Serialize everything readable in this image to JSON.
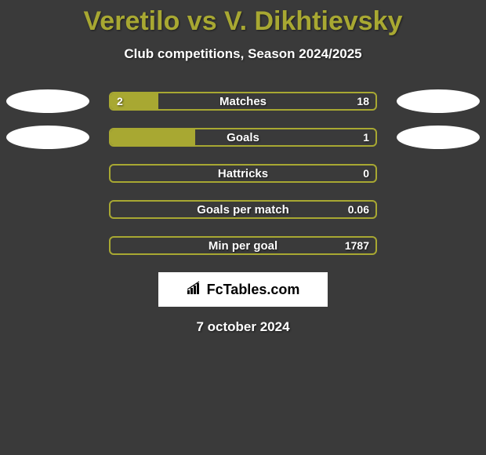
{
  "title": "Veretilo vs V. Dikhtievsky",
  "subtitle": "Club competitions, Season 2024/2025",
  "colors": {
    "background": "#3a3a3a",
    "accent": "#a8a832",
    "text": "#ffffff",
    "oval": "#ffffff"
  },
  "stats": [
    {
      "label": "Matches",
      "left_value": "2",
      "right_value": "18",
      "left_fill_pct": 18,
      "right_fill_pct": 0,
      "show_left_oval": true,
      "show_right_oval": true
    },
    {
      "label": "Goals",
      "left_value": "",
      "right_value": "1",
      "left_fill_pct": 32,
      "right_fill_pct": 0,
      "show_left_oval": true,
      "show_right_oval": true
    },
    {
      "label": "Hattricks",
      "left_value": "",
      "right_value": "0",
      "left_fill_pct": 0,
      "right_fill_pct": 0,
      "show_left_oval": false,
      "show_right_oval": false
    },
    {
      "label": "Goals per match",
      "left_value": "",
      "right_value": "0.06",
      "left_fill_pct": 0,
      "right_fill_pct": 0,
      "show_left_oval": false,
      "show_right_oval": false
    },
    {
      "label": "Min per goal",
      "left_value": "",
      "right_value": "1787",
      "left_fill_pct": 0,
      "right_fill_pct": 0,
      "show_left_oval": false,
      "show_right_oval": false
    }
  ],
  "logo": {
    "icon": "📊",
    "text": "FcTables.com"
  },
  "date": "7 october 2024"
}
